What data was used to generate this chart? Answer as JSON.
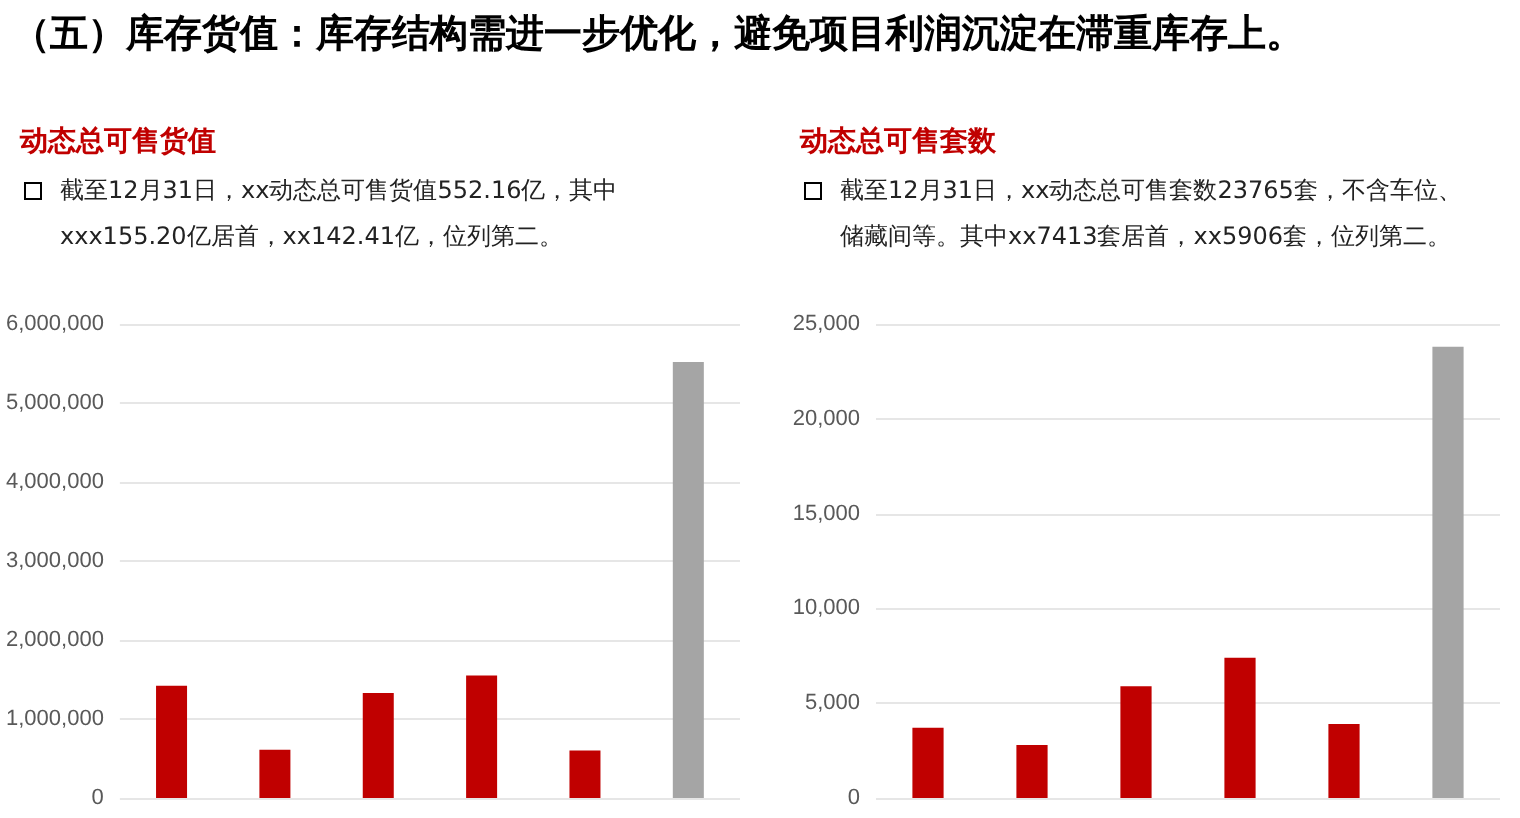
{
  "chart_data": [
    {
      "type": "bar",
      "title": "（五）库存货值：库存结构需进一步优化，避免项目利润沉淀在滞重库存上。",
      "subtitle": "动态总可售货值",
      "annotations": [
        "截至12月31日，xx动态总可售货值552.16亿，其中xxx155.20亿居首，xx142.41亿，位列第二。"
      ],
      "categories": [
        null,
        null,
        null,
        null,
        null,
        null
      ],
      "values": [
        1420000,
        610000,
        1330000,
        1550000,
        600000,
        5520000
      ],
      "colors": [
        "#c00000",
        "#c00000",
        "#c00000",
        "#c00000",
        "#c00000",
        "#a5a5a5"
      ],
      "ylim": [
        0,
        6000000
      ],
      "yticks": [
        0,
        {
          "value": 1000000,
          "label": "1,000,000"
        },
        {
          "value": 2000000,
          "label": "2,000,000"
        },
        {
          "value": 3000000,
          "label": "3,000,000"
        },
        {
          "value": 4000000,
          "label": "4,000,000"
        },
        {
          "value": 5000000,
          "label": "5,000,000"
        },
        {
          "value": 6000000,
          "label": "6,000,000"
        }
      ],
      "grid": "y"
    },
    {
      "type": "bar",
      "subtitle": "动态总可售套数",
      "annotations": [
        "截至12月31日，xx动态总可售套数23765套，不含车位、储藏间等。其中xx7413套居首，xx5906套，位列第二。"
      ],
      "categories": [
        null,
        null,
        null,
        null,
        null,
        null
      ],
      "values": [
        3700,
        2800,
        5900,
        7400,
        3900,
        23800
      ],
      "colors": [
        "#c00000",
        "#c00000",
        "#c00000",
        "#c00000",
        "#c00000",
        "#a5a5a5"
      ],
      "ylim": [
        0,
        25000
      ],
      "yticks": [
        0,
        {
          "value": 5000,
          "label": "5,000"
        },
        {
          "value": 10000,
          "label": "10,000"
        },
        {
          "value": 15000,
          "label": "15,000"
        },
        {
          "value": 20000,
          "label": "20,000"
        },
        {
          "value": 25000,
          "label": "25,000"
        }
      ],
      "grid": "y"
    }
  ]
}
